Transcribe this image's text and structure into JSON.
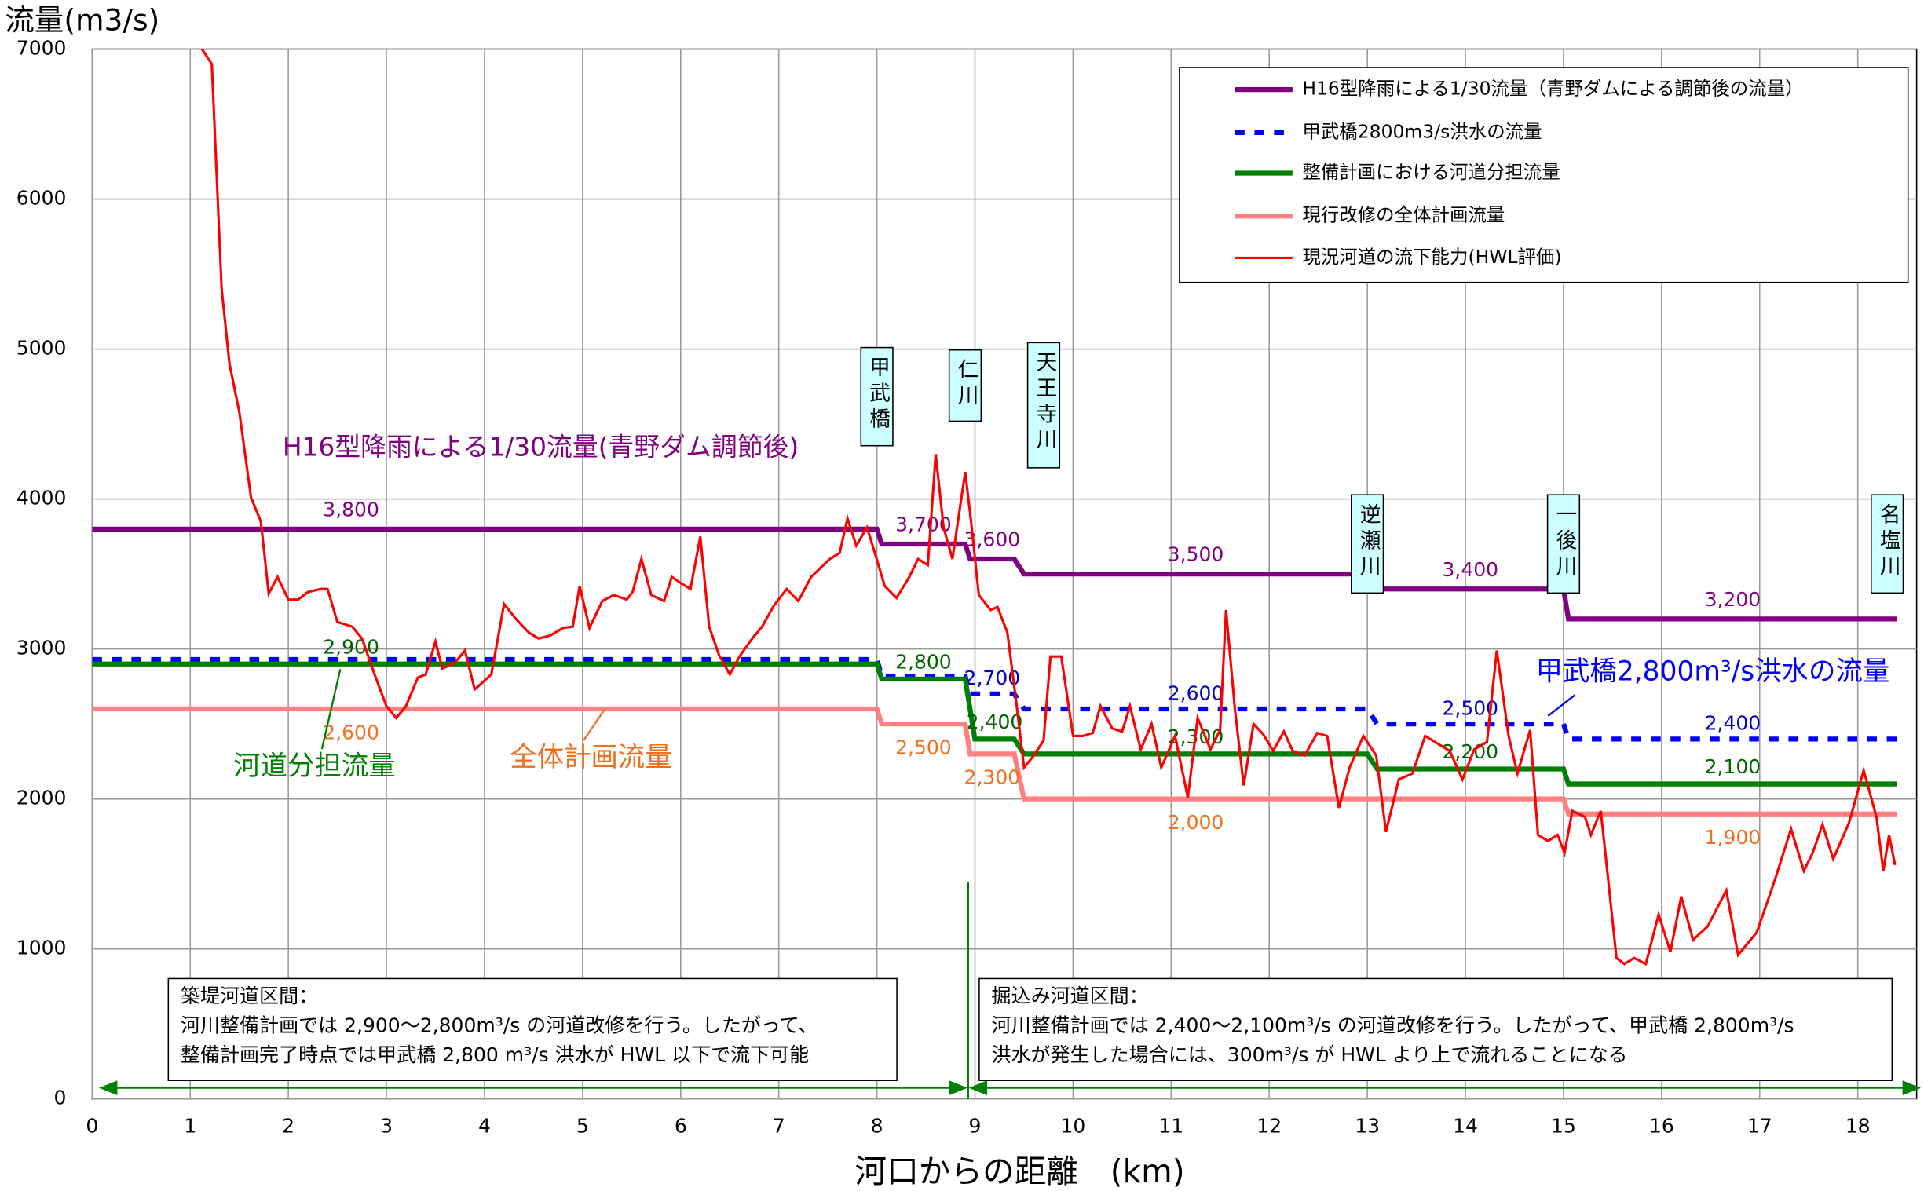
{
  "chart_data": {
    "type": "line",
    "y_label": "流量(m3/s)",
    "x_label": "河口からの距離　(km)",
    "xlim": [
      0,
      18.6
    ],
    "ylim": [
      0,
      7000
    ],
    "xticks": [
      0,
      1,
      2,
      3,
      4,
      5,
      6,
      7,
      8,
      9,
      10,
      11,
      12,
      13,
      14,
      15,
      16,
      17,
      18
    ],
    "yticks": [
      0,
      1000,
      2000,
      3000,
      4000,
      5000,
      6000,
      7000
    ],
    "grid": true,
    "legend": "upper right",
    "x": [
      0,
      8.0,
      8.05,
      8.9,
      8.95,
      9.4,
      9.5,
      13.0,
      13.1,
      15.0,
      15.05,
      18.4
    ],
    "series": [
      {
        "name": "H16型降雨による1/30流量（青野ダムによる調節後の流量）",
        "color": "#800080",
        "label_color": "#800080",
        "values": [
          3800,
          3800,
          3700,
          3700,
          3600,
          3600,
          3500,
          3500,
          3400,
          3400,
          3200,
          3200
        ],
        "value_labels": [
          "3,800",
          null,
          "3,700",
          null,
          "3,600",
          null,
          "3,500",
          null,
          "3,400",
          null,
          "3,200",
          null
        ]
      },
      {
        "name": "甲武橋2800m3/s洪水の流量",
        "color": "#0000ff",
        "label_color": "#0000cc",
        "dashed": true,
        "values": [
          2930,
          2930,
          2820,
          2820,
          2700,
          2700,
          2600,
          2600,
          2500,
          2500,
          2400,
          2400
        ],
        "value_labels": [
          null,
          null,
          null,
          null,
          "2,700",
          null,
          "2,600",
          null,
          "2,500",
          null,
          "2,400",
          null
        ]
      },
      {
        "name": "整備計画における河道分担流量",
        "color": "#008000",
        "label_color": "#006400",
        "x": [
          0,
          8.0,
          8.05,
          8.9,
          9.0,
          9.4,
          9.5,
          13.0,
          13.1,
          15.0,
          15.05,
          18.4
        ],
        "values": [
          2900,
          2900,
          2800,
          2800,
          2400,
          2400,
          2300,
          2300,
          2200,
          2200,
          2100,
          2100
        ],
        "value_labels": [
          "2,900",
          null,
          "2,800",
          null,
          "2,400",
          null,
          "2,300",
          null,
          "2,200",
          null,
          "2,100",
          null
        ]
      },
      {
        "name": "現行改修の全体計画流量",
        "color": "#ff8080",
        "label_color": "#f07020",
        "values": [
          2600,
          2600,
          2500,
          2500,
          2300,
          2300,
          2000,
          2000,
          2000,
          2000,
          1900,
          1900
        ],
        "value_labels": [
          "2,600",
          null,
          "2,500",
          null,
          "2,300",
          null,
          "2,000",
          null,
          null,
          null,
          "1,900",
          null
        ]
      },
      {
        "name": "現況河道の流下能力(HWL評価)",
        "color": "#ff0000",
        "x": [
          1.12,
          1.22,
          1.32,
          1.4,
          1.5,
          1.62,
          1.72,
          1.8,
          1.89,
          2.0,
          2.1,
          2.2,
          2.33,
          2.4,
          2.5,
          2.65,
          2.75,
          2.88,
          3.0,
          3.1,
          3.2,
          3.32,
          3.4,
          3.5,
          3.57,
          3.7,
          3.8,
          3.9,
          4.07,
          4.2,
          4.32,
          4.45,
          4.55,
          4.67,
          4.8,
          4.9,
          4.97,
          5.07,
          5.2,
          5.32,
          5.45,
          5.51,
          5.6,
          5.7,
          5.83,
          5.91,
          6.0,
          6.1,
          6.2,
          6.29,
          6.39,
          6.5,
          6.6,
          6.73,
          6.83,
          6.95,
          7.08,
          7.2,
          7.33,
          7.52,
          7.62,
          7.7,
          7.79,
          7.9,
          7.98,
          8.08,
          8.2,
          8.33,
          8.42,
          8.52,
          8.6,
          8.68,
          8.77,
          8.9,
          8.96,
          9.04,
          9.16,
          9.23,
          9.33,
          9.42,
          9.5,
          9.6,
          9.7,
          9.77,
          9.88,
          10.0,
          10.1,
          10.2,
          10.28,
          10.4,
          10.5,
          10.58,
          10.69,
          10.8,
          10.9,
          11.04,
          11.17,
          11.27,
          11.4,
          11.5,
          11.56,
          11.65,
          11.74,
          11.84,
          11.94,
          12.04,
          12.15,
          12.24,
          12.36,
          12.49,
          12.59,
          12.71,
          12.82,
          12.96,
          13.09,
          13.19,
          13.32,
          13.46,
          13.59,
          13.69,
          13.84,
          13.97,
          14.09,
          14.22,
          14.32,
          14.44,
          14.53,
          14.66,
          14.74,
          14.84,
          14.94,
          15.01,
          15.09,
          15.22,
          15.28,
          15.38,
          15.44,
          15.54,
          15.62,
          15.72,
          15.84,
          15.97,
          16.09,
          16.2,
          16.32,
          16.47,
          16.66,
          16.78,
          16.97,
          17.16,
          17.32,
          17.45,
          17.54,
          17.64,
          17.75,
          17.91,
          18.06,
          18.19,
          18.26,
          18.32,
          18.38
        ],
        "values": [
          7000,
          6900,
          5400,
          4900,
          4580,
          4010,
          3850,
          3370,
          3480,
          3330,
          3330,
          3380,
          3400,
          3400,
          3180,
          3150,
          3070,
          2830,
          2620,
          2540,
          2620,
          2810,
          2830,
          3050,
          2870,
          2910,
          2990,
          2730,
          2830,
          3300,
          3200,
          3110,
          3070,
          3090,
          3140,
          3150,
          3420,
          3140,
          3320,
          3360,
          3330,
          3380,
          3600,
          3360,
          3320,
          3480,
          3440,
          3400,
          3750,
          3150,
          2960,
          2830,
          2950,
          3070,
          3150,
          3290,
          3400,
          3320,
          3480,
          3600,
          3640,
          3870,
          3690,
          3810,
          3640,
          3420,
          3340,
          3480,
          3600,
          3560,
          4300,
          3810,
          3600,
          4180,
          3850,
          3360,
          3260,
          3280,
          3110,
          2650,
          2210,
          2290,
          2390,
          2950,
          2950,
          2420,
          2420,
          2440,
          2620,
          2470,
          2450,
          2620,
          2330,
          2500,
          2210,
          2420,
          2010,
          2540,
          2330,
          2460,
          3260,
          2600,
          2090,
          2500,
          2430,
          2320,
          2450,
          2320,
          2290,
          2440,
          2420,
          1940,
          2210,
          2420,
          2290,
          1780,
          2130,
          2170,
          2420,
          2380,
          2320,
          2130,
          2330,
          2380,
          2990,
          2420,
          2170,
          2460,
          1760,
          1720,
          1760,
          1640,
          1920,
          1880,
          1760,
          1920,
          1560,
          940,
          900,
          940,
          900,
          1230,
          980,
          1350,
          1060,
          1150,
          1390,
          960,
          1110,
          1470,
          1800,
          1520,
          1640,
          1830,
          1600,
          1840,
          2190,
          1880,
          1520,
          1760,
          1560
        ]
      }
    ],
    "annotations": [
      {
        "text": "H16型降雨による1/30流量(青野ダム調節後)",
        "color": "#800080"
      },
      {
        "text": "甲武橋2,800m³/s洪水の流量",
        "color": "#0000ff"
      },
      {
        "text": "河道分担流量",
        "color": "#008000"
      },
      {
        "text": "全体計画流量",
        "color": "#f07020"
      }
    ],
    "landmarks": [
      {
        "x": 8.0,
        "label": "甲武橋"
      },
      {
        "x": 8.9,
        "label": "仁川"
      },
      {
        "x": 9.7,
        "label": "天王寺川"
      },
      {
        "x": 13.0,
        "label": "逆瀬川"
      },
      {
        "x": 15.0,
        "label": "一後川"
      },
      {
        "x": 18.3,
        "label": "名塩川"
      }
    ],
    "notes": [
      {
        "title": "築堤河道区間：",
        "lines": [
          "河川整備計画では 2,900～2,800m³/s の河道改修を行う。したがって、",
          "整備計画完了時点では甲武橋 2,800 m³/s 洪水が HWL 以下で流下可能"
        ]
      },
      {
        "title": "掘込み河道区間：",
        "lines": [
          "河川整備計画では 2,400～2,100m³/s の河道改修を行う。したがって、甲武橋 2,800m³/s",
          "洪水が発生した場合には、300m³/s が HWL より上で流れることになる"
        ]
      }
    ]
  }
}
